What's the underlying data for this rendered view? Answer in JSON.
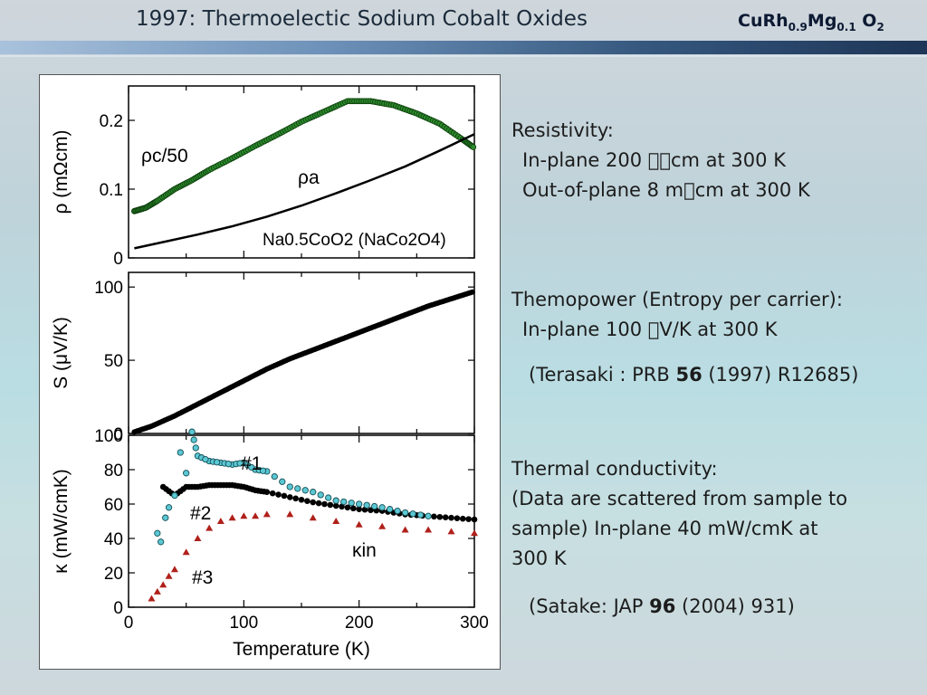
{
  "slide": {
    "title": "1997: Thermoelectic Sodium Cobalt Oxides",
    "compound": {
      "p1": "CuRh",
      "s1": "0.9",
      "p2": "Mg",
      "s2": "0.1",
      "p3": " O",
      "s3": "2"
    }
  },
  "text": {
    "resistivity": {
      "heading": "Resistivity:",
      "line1": "In-plane 200 \u0000\u0000cm at 300 K",
      "line2": "Out-of-plane 8 m\u0000cm at 300 K"
    },
    "thermopower": {
      "heading": "Themopower (Entropy per carrier):",
      "line1": "In-plane 100 \u0000V/K at 300 K",
      "ref_pre": "(Terasaki : PRB ",
      "ref_bold": "56",
      "ref_post": " (1997) R12685)"
    },
    "thermal": {
      "heading": "Thermal conductivity:",
      "line1": "(Data are scattered from sample to",
      "line2": "sample)  In-plane 40 mW/cmK at",
      "line3": "300 K",
      "ref_pre": "(Satake:  JAP ",
      "ref_bold": "96",
      "ref_post": " (2004) 931)"
    }
  },
  "colors": {
    "green_marker": "#2e8b2e",
    "cyan_marker": "#5bc8d3",
    "red_marker": "#b0201a",
    "line": "#000000"
  },
  "chart_data": [
    {
      "type": "line",
      "panel": "resistivity",
      "ylabel": "ρ (mΩcm)",
      "ylim": [
        0,
        0.25
      ],
      "yticks": [
        "0",
        "0.1",
        "0.2"
      ],
      "xlim": [
        0,
        300
      ],
      "labels": {
        "rho_c": "ρc/50",
        "rho_a": "ρa",
        "material": "Na0.5CoO2 (NaCo2O4)"
      },
      "series": [
        {
          "name": "ρc/50",
          "x": [
            5,
            15,
            25,
            40,
            55,
            70,
            90,
            110,
            130,
            150,
            170,
            190,
            210,
            230,
            250,
            270,
            290,
            300
          ],
          "y": [
            0.068,
            0.073,
            0.083,
            0.1,
            0.113,
            0.128,
            0.145,
            0.163,
            0.18,
            0.198,
            0.213,
            0.228,
            0.228,
            0.222,
            0.21,
            0.195,
            0.172,
            0.16
          ]
        },
        {
          "name": "ρa",
          "x": [
            5,
            30,
            60,
            90,
            120,
            150,
            180,
            210,
            240,
            270,
            300
          ],
          "y": [
            0.014,
            0.023,
            0.034,
            0.046,
            0.06,
            0.076,
            0.094,
            0.113,
            0.133,
            0.156,
            0.18
          ]
        }
      ]
    },
    {
      "type": "scatter",
      "panel": "thermopower",
      "ylabel": "S (μV/K)",
      "ylim": [
        0,
        110
      ],
      "yticks": [
        "0",
        "50",
        "100"
      ],
      "xlim": [
        0,
        300
      ],
      "series": [
        {
          "name": "S",
          "x": [
            5,
            20,
            40,
            60,
            80,
            100,
            120,
            140,
            160,
            180,
            200,
            220,
            240,
            260,
            280,
            300
          ],
          "y": [
            1,
            5,
            12,
            20,
            28,
            36,
            44,
            51,
            57,
            63,
            69,
            75,
            81,
            87,
            92,
            97
          ]
        }
      ]
    },
    {
      "type": "scatter",
      "panel": "thermal",
      "ylabel": "κ (mW/cmK)",
      "xlabel": "Temperature (K)",
      "ylim": [
        0,
        100
      ],
      "yticks": [
        "0",
        "20",
        "40",
        "60",
        "80",
        "100"
      ],
      "xlim": [
        0,
        300
      ],
      "xticks": [
        "0",
        "100",
        "200",
        "300"
      ],
      "labels": {
        "s1": "#1",
        "s2": "#2",
        "s3": "#3",
        "kappa": "κin"
      },
      "series": [
        {
          "name": "#1",
          "x": [
            25,
            28,
            32,
            35,
            40,
            45,
            50,
            55,
            60,
            70,
            80,
            90,
            100,
            110,
            120,
            140,
            160,
            180,
            200,
            220,
            240,
            260
          ],
          "y": [
            43,
            38,
            52,
            58,
            65,
            90,
            78,
            102,
            88,
            85,
            84,
            83,
            84,
            80,
            79,
            70,
            67,
            62,
            60,
            58,
            55,
            53
          ]
        },
        {
          "name": "#2",
          "x": [
            30,
            40,
            50,
            60,
            70,
            80,
            90,
            100,
            110,
            120,
            140,
            160,
            180,
            200,
            220,
            240,
            260,
            280,
            300
          ],
          "y": [
            70,
            65,
            70,
            70,
            71,
            71,
            71,
            70,
            68,
            67,
            64,
            61,
            59,
            57,
            56,
            54,
            53,
            52,
            51
          ]
        },
        {
          "name": "#3",
          "x": [
            20,
            25,
            30,
            35,
            40,
            50,
            60,
            70,
            80,
            90,
            100,
            110,
            120,
            140,
            160,
            180,
            200,
            220,
            240,
            260,
            280,
            300
          ],
          "y": [
            5,
            9,
            13,
            18,
            22,
            32,
            40,
            46,
            50,
            52,
            53,
            53,
            54,
            54,
            52,
            50,
            48,
            47,
            45,
            45,
            44,
            43
          ]
        }
      ]
    }
  ]
}
